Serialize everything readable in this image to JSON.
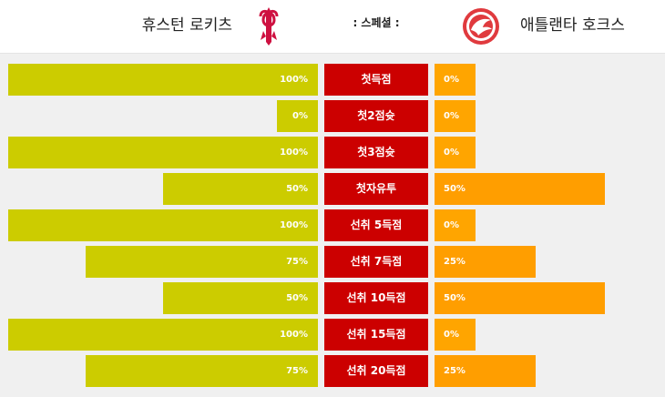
{
  "header": {
    "home_team": "휴스턴 로키츠",
    "away_team": "애틀랜타 호크스",
    "special_label": ": 스페셜 :"
  },
  "colors": {
    "home_bar": "#cccc00",
    "away_bar": "#ff9e00",
    "label_box": "#cc0000"
  },
  "rows": [
    {
      "label": "첫득점",
      "home_pct": "100%",
      "away_pct": "0%",
      "home_value": 1.0,
      "away_value": 0.0
    },
    {
      "label": "첫2점슛",
      "home_pct": "0%",
      "away_pct": "0%",
      "home_value": 0.0,
      "away_value": 0.0
    },
    {
      "label": "첫3점슛",
      "home_pct": "100%",
      "away_pct": "0%",
      "home_value": 1.0,
      "away_value": 0.0
    },
    {
      "label": "첫자유투",
      "home_pct": "50%",
      "away_pct": "50%",
      "home_value": 0.5,
      "away_value": 0.5
    },
    {
      "label": "선취 5득점",
      "home_pct": "100%",
      "away_pct": "0%",
      "home_value": 1.0,
      "away_value": 0.0
    },
    {
      "label": "선취 7득점",
      "home_pct": "75%",
      "away_pct": "25%",
      "home_value": 0.75,
      "away_value": 0.25
    },
    {
      "label": "선취 10득점",
      "home_pct": "50%",
      "away_pct": "50%",
      "home_value": 0.5,
      "away_value": 0.5
    },
    {
      "label": "선취 15득점",
      "home_pct": "100%",
      "away_pct": "0%",
      "home_value": 1.0,
      "away_value": 0.0
    },
    {
      "label": "선취 20득점",
      "home_pct": "75%",
      "away_pct": "25%",
      "home_value": 0.75,
      "away_value": 0.25
    }
  ]
}
